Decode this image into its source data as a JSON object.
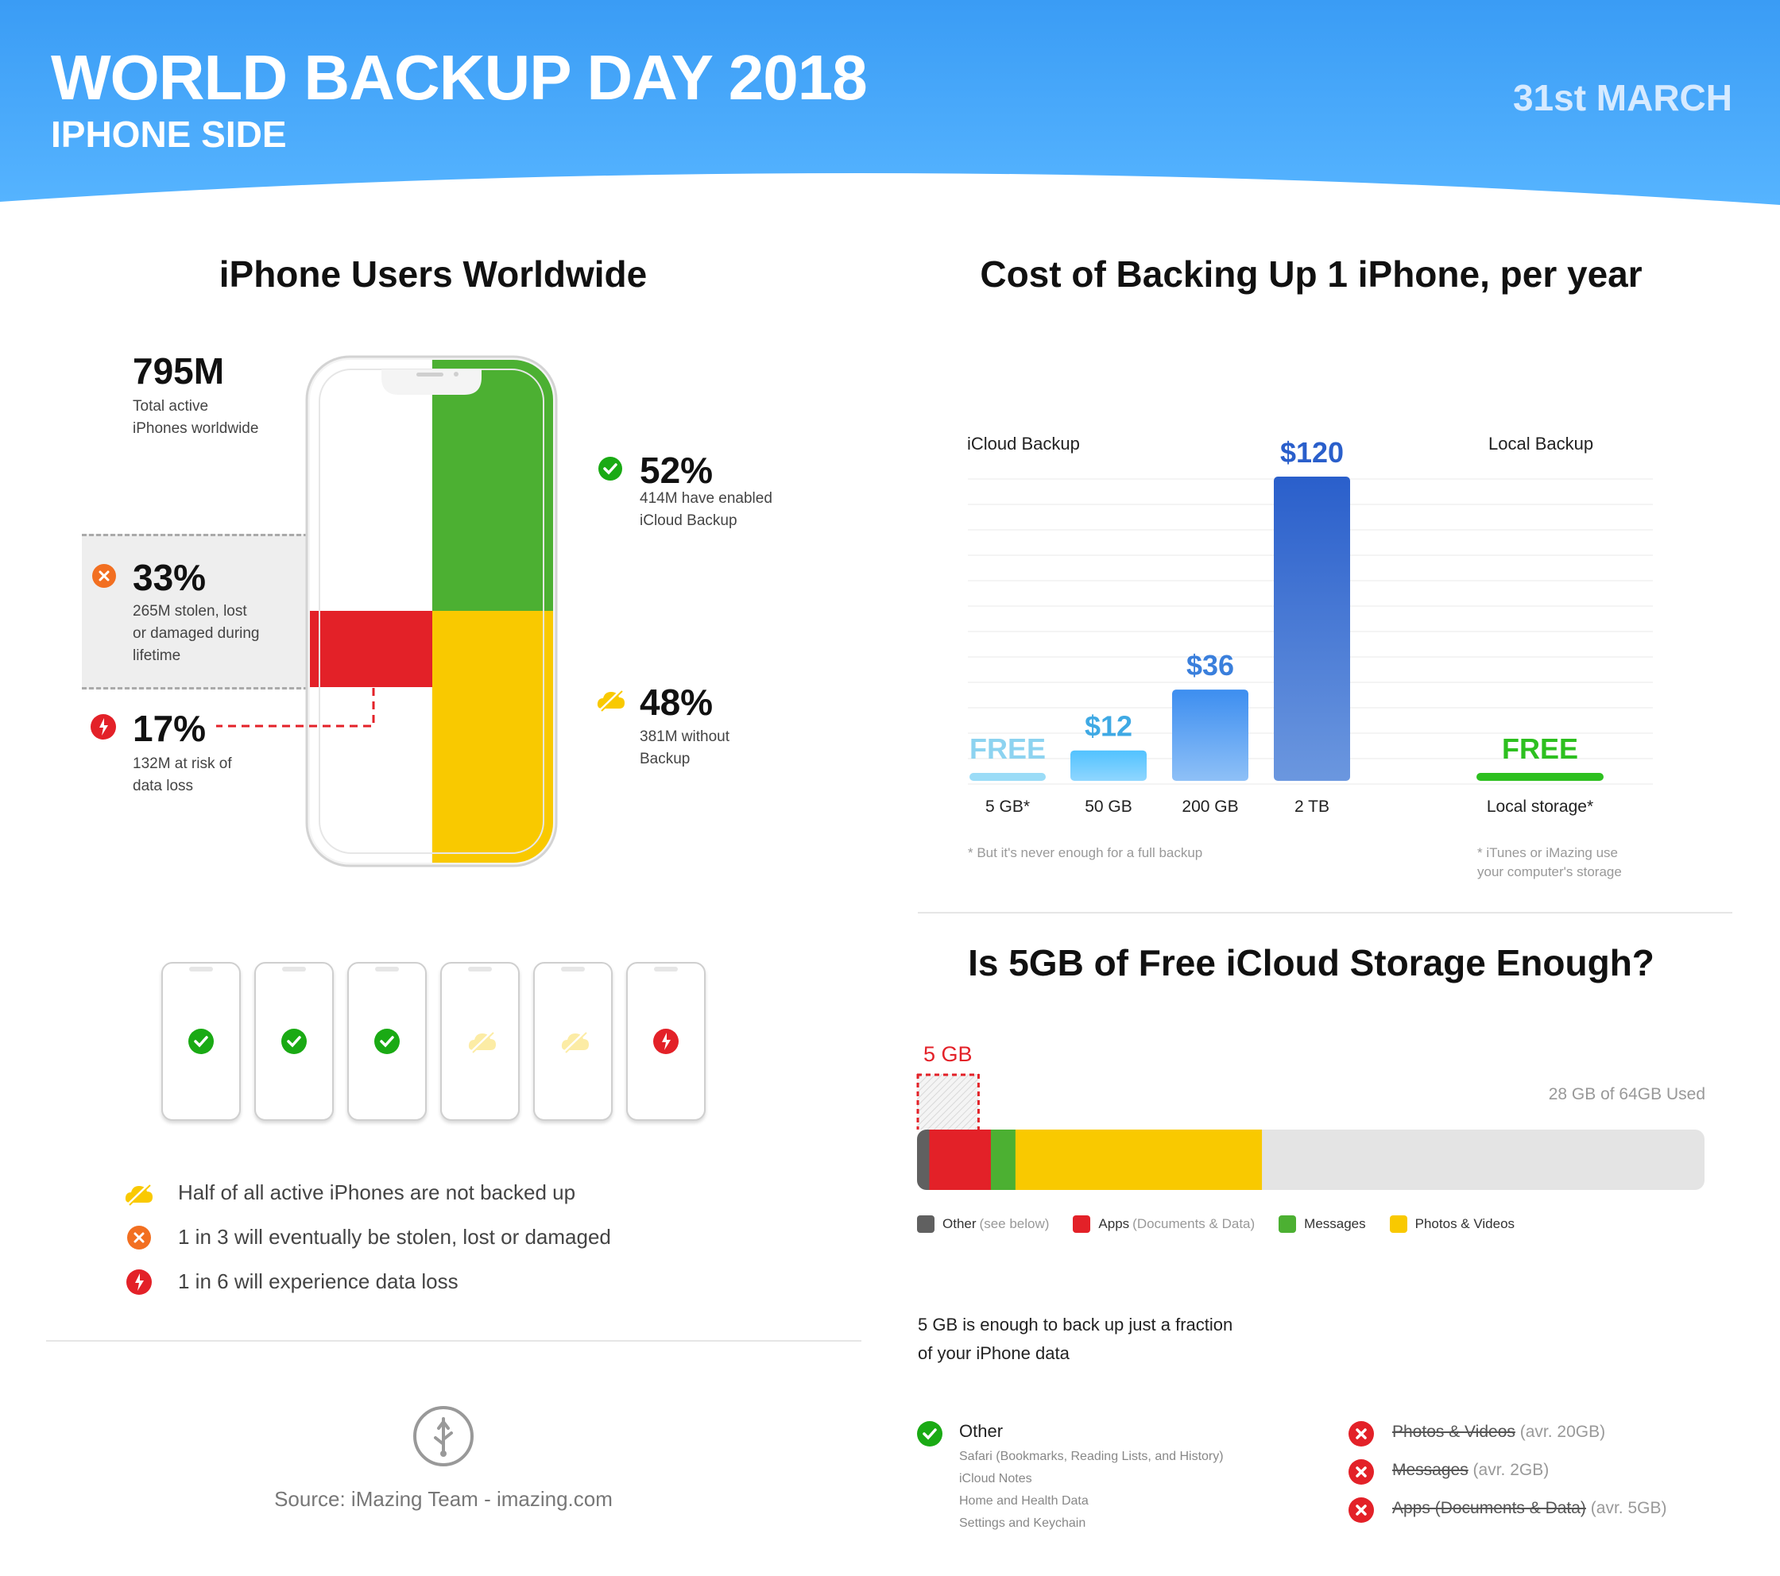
{
  "header": {
    "title": "WORLD BACKUP DAY 2018",
    "subtitle": "IPHONE SIDE",
    "date": "31st MARCH"
  },
  "users": {
    "title": "iPhone Users Worldwide",
    "total_value": "795M",
    "total_desc": [
      "Total active",
      "iPhones worldwide"
    ],
    "enabled_pct": "52%",
    "enabled_desc": [
      "414M have enabled",
      "iCloud Backup"
    ],
    "stolen_pct": "33%",
    "stolen_desc": [
      "265M stolen, lost",
      "or damaged during",
      "lifetime"
    ],
    "risk_pct": "17%",
    "risk_desc": [
      "132M at risk of",
      "data loss"
    ],
    "without_pct": "48%",
    "without_desc": [
      "381M without",
      "Backup"
    ],
    "colors": {
      "backed_up": "#4cb032",
      "not_backed": "#f9c900",
      "at_risk": "#e32128",
      "stolen_icon": "#f26f21"
    }
  },
  "phones_row": [
    "check-icon",
    "check-icon",
    "check-icon",
    "cloud-off-icon",
    "cloud-off-icon",
    "risk-icon"
  ],
  "facts": [
    {
      "icon": "cloud-off-icon",
      "text": "Half of all active iPhones are not backed up"
    },
    {
      "icon": "stolen-icon",
      "text": "1 in 3 will eventually be stolen, lost or damaged"
    },
    {
      "icon": "risk-icon",
      "text": "1 in 6 will experience data loss"
    }
  ],
  "source": "Source: iMazing Team - imazing.com",
  "chart_data": [
    {
      "type": "bar",
      "title": "Cost of Backing Up 1 iPhone, per year",
      "groups": [
        "iCloud Backup",
        "Local Backup"
      ],
      "categories": [
        "5 GB*",
        "50 GB",
        "200 GB",
        "2 TB",
        "Local storage*"
      ],
      "values": [
        0,
        12,
        36,
        120,
        0
      ],
      "labels": [
        "FREE",
        "$12",
        "$36",
        "$120",
        "FREE"
      ],
      "label_colors": [
        "#8dd3f0",
        "#3fa9e4",
        "#3a7fdc",
        "#2a5fcb",
        "#2dc01f"
      ],
      "ylim": [
        0,
        120
      ],
      "notes": {
        "icloud": "* But it's never enough for a full backup",
        "local": [
          "* iTunes or iMazing use",
          "your computer's storage"
        ]
      }
    },
    {
      "type": "bar",
      "orientation": "horizontal-stacked",
      "title": "Is 5GB of Free iCloud Storage Enough?",
      "marker_label": "5 GB",
      "usage_label": "28 GB of 64GB Used",
      "total": 64,
      "segments": [
        {
          "name": "Other",
          "paren": "(see below)",
          "value": 1,
          "color": "#606060"
        },
        {
          "name": "Apps",
          "paren": "(Documents & Data)",
          "value": 5,
          "color": "#e32128"
        },
        {
          "name": "Messages",
          "paren": "",
          "value": 2,
          "color": "#4cb032"
        },
        {
          "name": "Photos & Videos",
          "paren": "",
          "value": 20,
          "color": "#f9c900"
        }
      ],
      "rest_color": "#e4e4e4"
    }
  ],
  "storage": {
    "caption": [
      "5 GB is enough to back up just a fraction",
      "of your iPhone data"
    ],
    "other_title": "Other",
    "other_items": [
      "Safari (Bookmarks, Reading Lists, and History)",
      "iCloud Notes",
      "Home and Health Data",
      "Settings and Keychain"
    ],
    "excluded": [
      {
        "label": "Photos & Videos",
        "note": "(avr. 20GB)"
      },
      {
        "label": "Messages",
        "note": "(avr. 2GB)"
      },
      {
        "label": "Apps (Documents & Data)",
        "note": "(avr. 5GB)"
      }
    ]
  }
}
